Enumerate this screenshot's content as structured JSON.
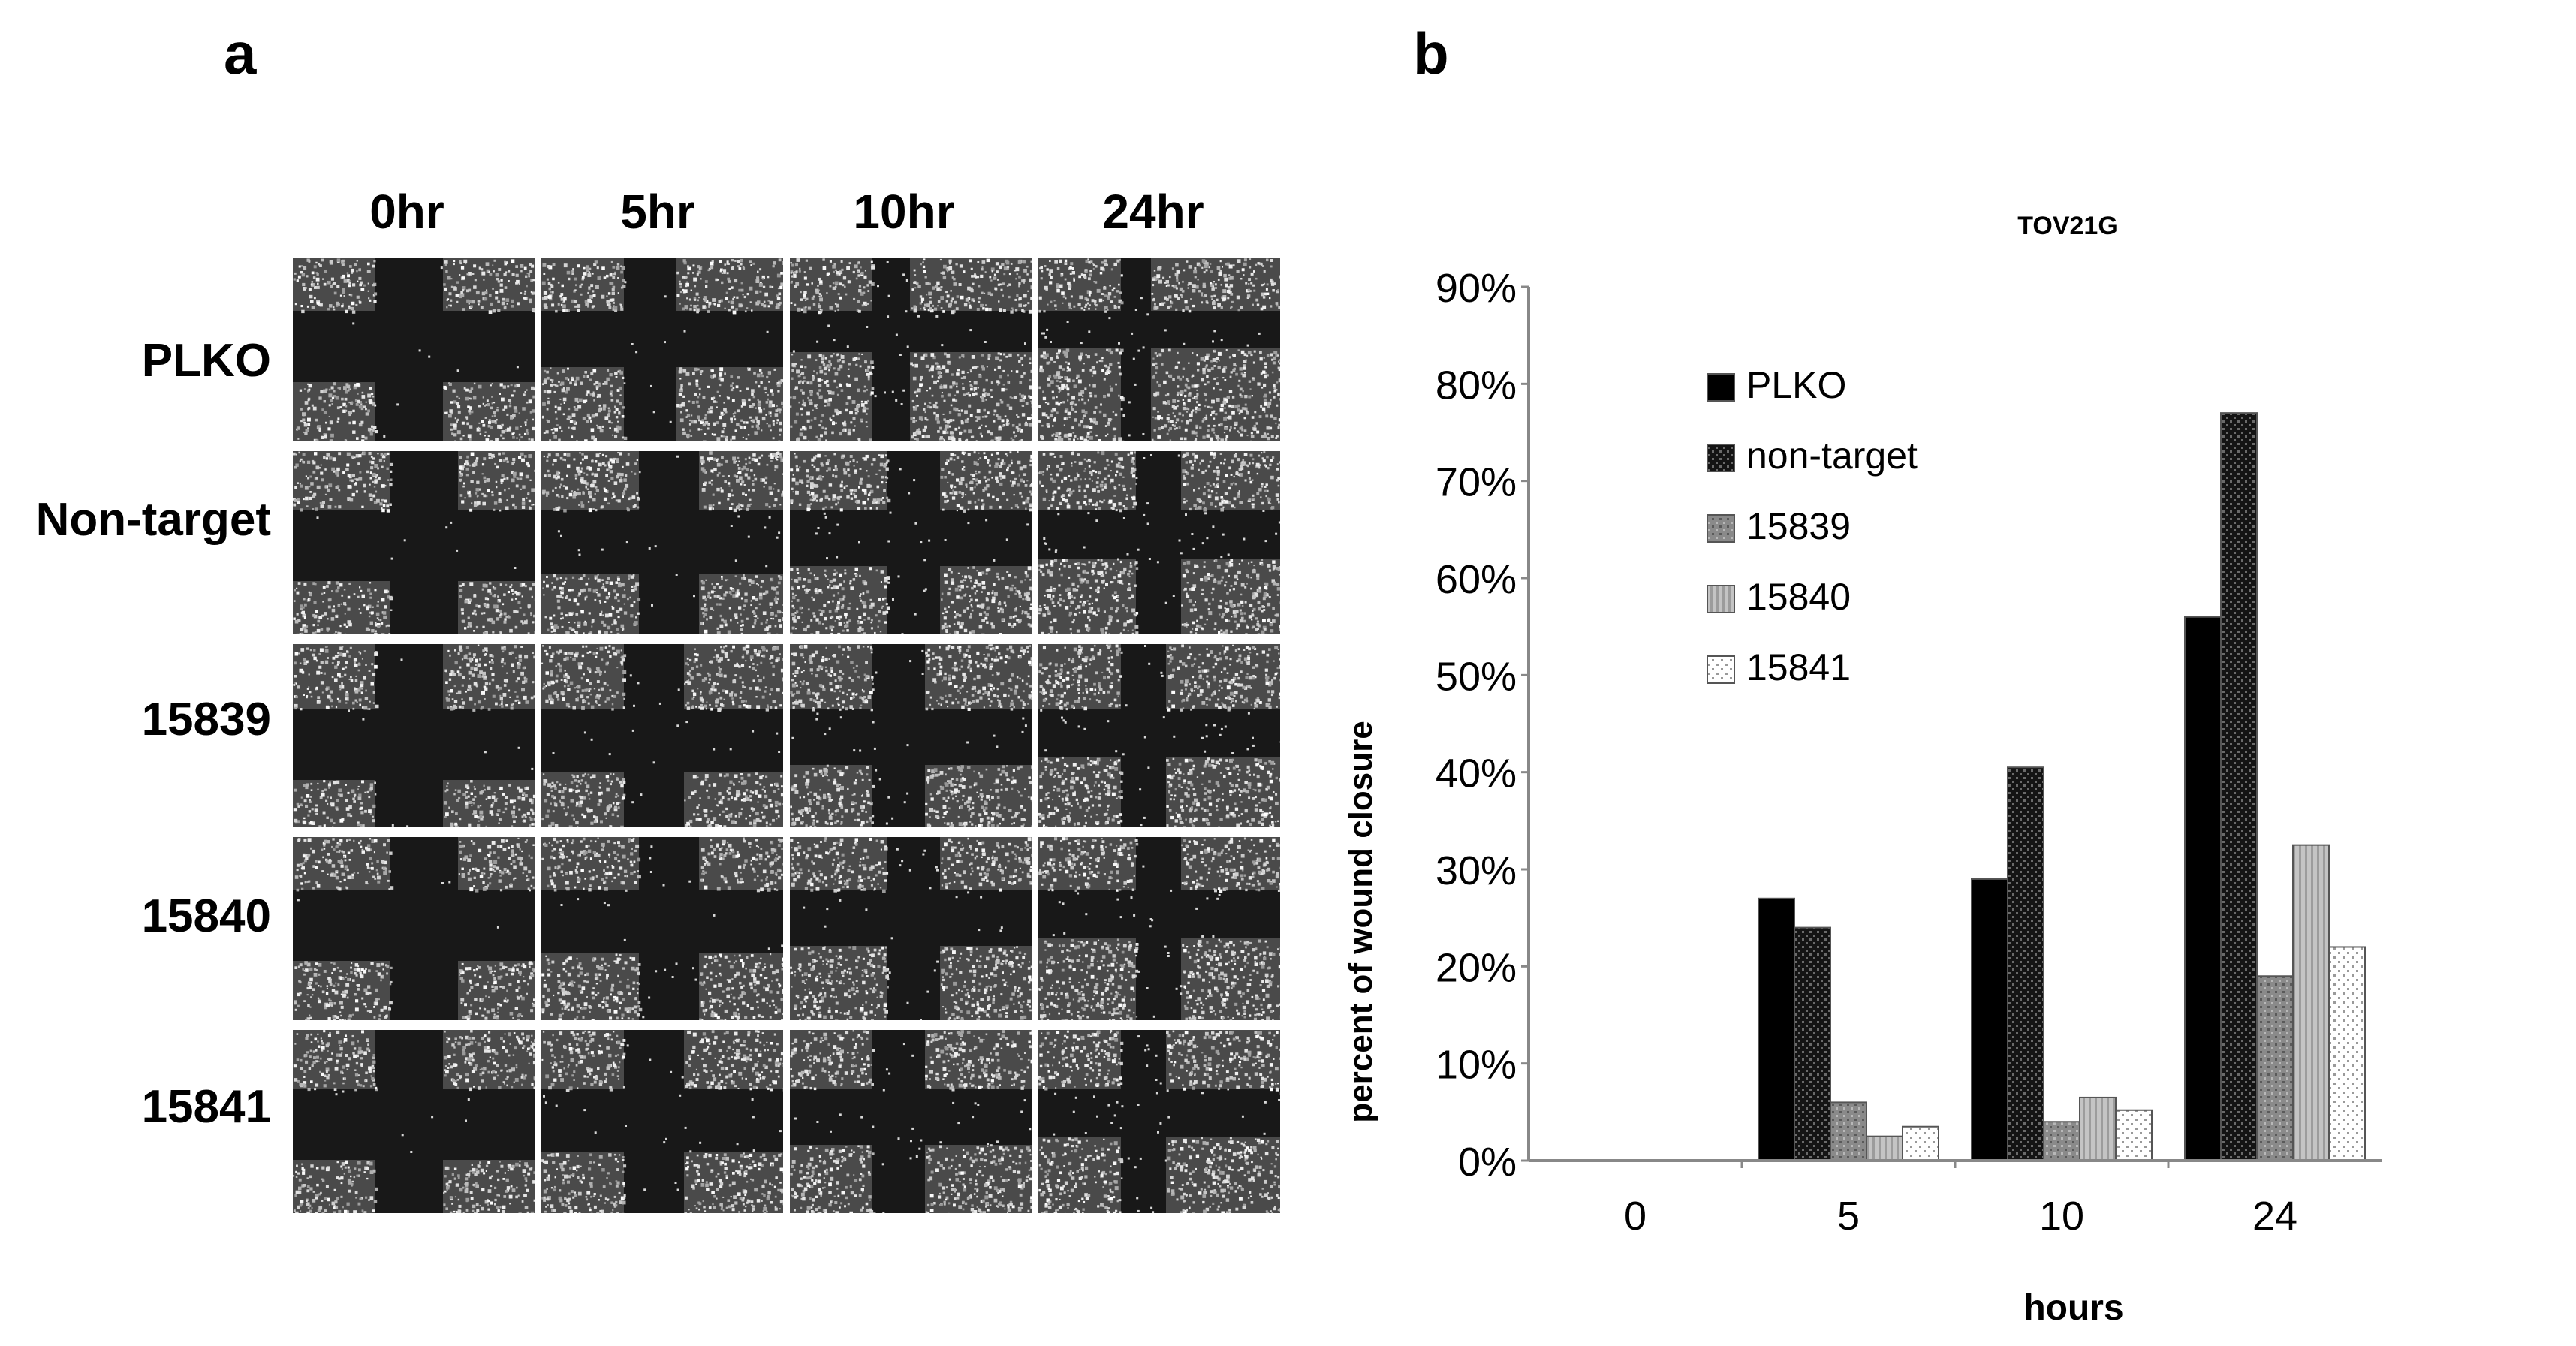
{
  "panel_a": {
    "letter": "a",
    "columns": [
      "0hr",
      "5hr",
      "10hr",
      "24hr"
    ],
    "rows": [
      "PLKO",
      "Non-target",
      "15839",
      "15840",
      "15841"
    ]
  },
  "panel_b": {
    "letter": "b"
  },
  "chart_data": {
    "type": "bar",
    "title": "TOV21G",
    "xlabel": "hours",
    "ylabel": "percent of wound closure",
    "categories": [
      "0",
      "5",
      "10",
      "24"
    ],
    "ylim": [
      0,
      90
    ],
    "ytick_step": 10,
    "ytick_labels": [
      "0%",
      "10%",
      "20%",
      "30%",
      "40%",
      "50%",
      "60%",
      "70%",
      "80%",
      "90%"
    ],
    "legend_position": "upper-left",
    "series": [
      {
        "name": "PLKO",
        "values": [
          0,
          27,
          29,
          56
        ],
        "pattern": "solid"
      },
      {
        "name": "non-target",
        "values": [
          0,
          24,
          40.5,
          77
        ],
        "pattern": "dense-dots"
      },
      {
        "name": "15839",
        "values": [
          0,
          6,
          4,
          19
        ],
        "pattern": "grey-dots"
      },
      {
        "name": "15840",
        "values": [
          0,
          2.5,
          6.5,
          32.5
        ],
        "pattern": "light-lines"
      },
      {
        "name": "15841",
        "values": [
          0,
          3.5,
          5.2,
          22
        ],
        "pattern": "sparse-dots"
      }
    ]
  }
}
